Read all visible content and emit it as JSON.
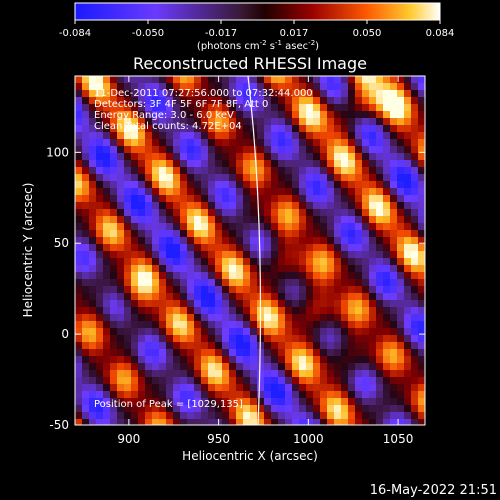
{
  "chart_data": {
    "type": "heatmap",
    "title": "Reconstructed RHESSI Image",
    "xlabel": "Heliocentric X (arcsec)",
    "ylabel": "Heliocentric Y (arcsec)",
    "xlim": [
      870,
      1065
    ],
    "ylim": [
      -50,
      142
    ],
    "xticks": [
      900,
      950,
      1000,
      1050
    ],
    "yticks": [
      -50,
      0,
      50,
      100
    ],
    "colorbar": {
      "min": -0.084,
      "max": 0.084,
      "ticks": [
        "-0.084",
        "-0.050",
        "-0.017",
        "0.017",
        "0.050",
        "0.084"
      ],
      "label_main": "(photons cm",
      "label_exp1": "-2",
      "label_mid1": " s",
      "label_exp2": "-1",
      "label_mid2": " asec",
      "label_exp3": "-2",
      "label_end": ")"
    },
    "annotations": [
      "11-Dec-2011 07:27:56.000 to 07:32:44.000",
      "Detectors: 3F 4F 5F 6F 7F 8F, Att 0",
      "Energy Range: 3.0 - 6.0 keV",
      "Clean     Total counts: 4.72E+04"
    ],
    "peak_label": "Position of Peak = [1029,135]",
    "peak_position": [
      1029,
      135
    ],
    "limb_color": "#ffffff"
  },
  "footer": {
    "timestamp": "16-May-2022 21:51"
  }
}
